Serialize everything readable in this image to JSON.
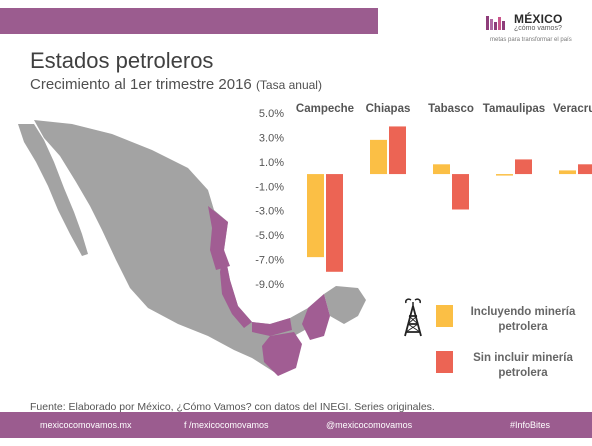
{
  "header": {
    "logo_title": "MÉXICO",
    "logo_subtitle": "¿cómo vamos?",
    "logo_tagline": "metas para transformar el país"
  },
  "title": "Estados petroleros",
  "subtitle": "Crecimiento al 1er trimestre 2016",
  "subtitle_unit": "(Tasa anual)",
  "colors": {
    "accent": "#9b5c8f",
    "series_with_mining": "#fbbf45",
    "series_without_mining": "#ec6454",
    "map_grey": "#a3a3a3",
    "map_highlight": "#a15d93"
  },
  "chart_data": {
    "type": "bar",
    "categories": [
      "Campeche",
      "Chiapas",
      "Tabasco",
      "Tamaulipas",
      "Veracruz"
    ],
    "series": [
      {
        "name": "Incluyendo minería petrolera",
        "values": [
          -6.8,
          2.8,
          0.8,
          -0.1,
          0.3
        ]
      },
      {
        "name": "Sin incluir minería petrolera",
        "values": [
          -8.0,
          3.9,
          -2.9,
          1.2,
          0.8
        ]
      }
    ],
    "ylim": [
      -9,
      5
    ],
    "yticks": [
      5,
      3,
      1,
      -1,
      -3,
      -5,
      -7,
      -9
    ],
    "ytick_labels": [
      "5.0%",
      "3.0%",
      "1.0%",
      "-1.0%",
      "-3.0%",
      "-5.0%",
      "-7.0%",
      "-9.0%"
    ],
    "grid": false,
    "legend_position": "bottom-right"
  },
  "legend": {
    "item1": "Incluyendo minería petrolera",
    "item2": "Sin incluir minería petrolera"
  },
  "source": "Fuente: Elaborado por México, ¿Cómo Vamos? con datos del INEGI. Series originales.",
  "footer": {
    "website": "mexicocomovamos.mx",
    "facebook": "f  /mexicocomovamos",
    "twitter": "@mexicocomovamos",
    "hashtag": "#InfoBites"
  }
}
